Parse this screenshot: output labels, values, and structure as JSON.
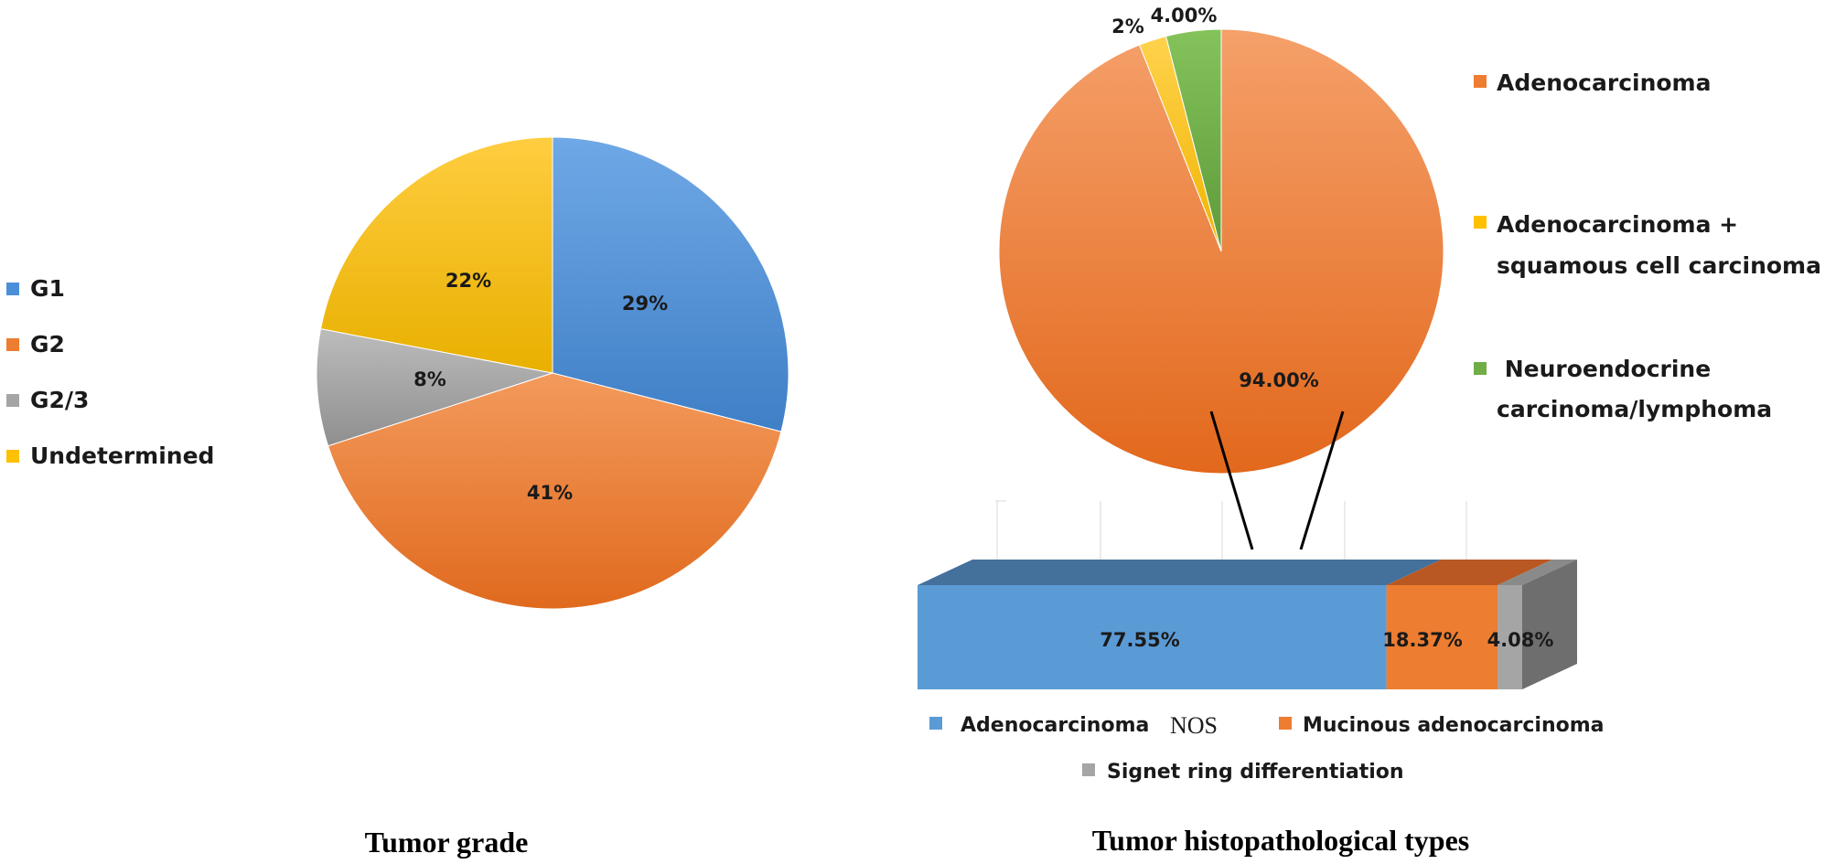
{
  "chart_data": [
    {
      "type": "pie",
      "title": "Tumor grade",
      "categories": [
        "G1",
        "G2",
        "G2/3",
        "Undetermined"
      ],
      "values": [
        29,
        41,
        8,
        22
      ],
      "labels": [
        "29%",
        "41%",
        "8%",
        "22%"
      ],
      "colors": [
        "#4a90d9",
        "#ed7d31",
        "#a5a5a5",
        "#ffc000"
      ],
      "legend_position": "left"
    },
    {
      "type": "pie",
      "title": "Tumor histopathological types",
      "categories": [
        "Adenocarcinoma",
        "Adenocarcinoma + squamous cell carcinoma",
        "Neuroendocrine carcinoma/lymphoma"
      ],
      "legend_lines": [
        [
          "Adenocarcinoma"
        ],
        [
          "Adenocarcinoma +",
          "squamous cell carcinoma"
        ],
        [
          " Neuroendocrine",
          "carcinoma/lymphoma"
        ]
      ],
      "values": [
        94,
        2,
        4
      ],
      "labels": [
        "94.00%",
        "2%",
        "4.00%"
      ],
      "colors": [
        "#ed7d31",
        "#ffc000",
        "#70ad47"
      ],
      "legend_position": "right"
    },
    {
      "type": "bar",
      "subtype": "stacked-100-horizontal-3d",
      "breakdown_of": "Adenocarcinoma",
      "categories": [
        "Adenocarcinoma NOS",
        "Mucinous adenocarcinoma",
        "Signet ring differentiation"
      ],
      "legend_labels": [
        "Adenocarcinoma",
        "NOS",
        "Mucinous adenocarcinoma",
        "Signet ring differentiation"
      ],
      "values": [
        77.55,
        18.37,
        4.08
      ],
      "labels": [
        "77.55%",
        "18.37%",
        "4.08%"
      ],
      "colors": [
        "#5b9bd5",
        "#ed7d31",
        "#a5a5a5"
      ],
      "legend_position": "bottom"
    }
  ]
}
